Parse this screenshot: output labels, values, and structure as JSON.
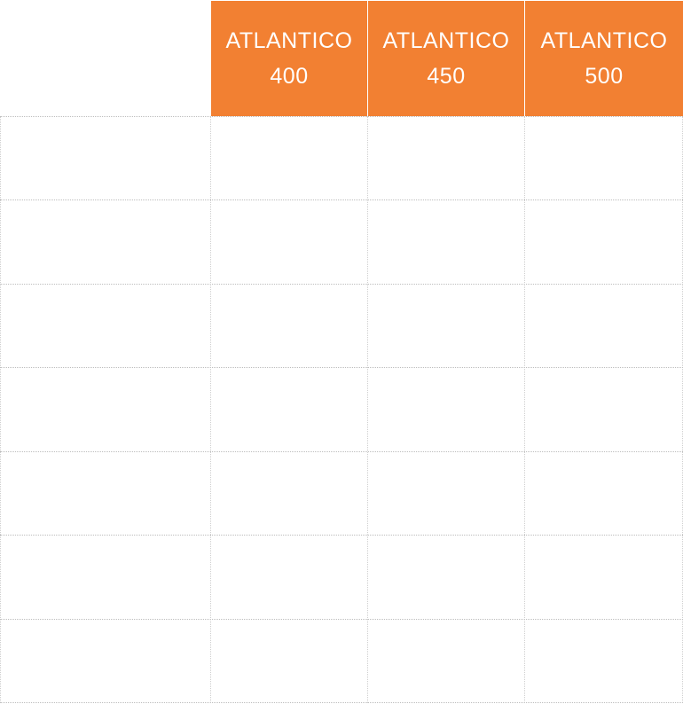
{
  "table": {
    "header": [
      {
        "lines": [
          "ATLANTICO",
          "400"
        ]
      },
      {
        "lines": [
          "ATLANTICO",
          "450"
        ]
      },
      {
        "lines": [
          "ATLANTICO",
          "500"
        ]
      }
    ]
  }
}
